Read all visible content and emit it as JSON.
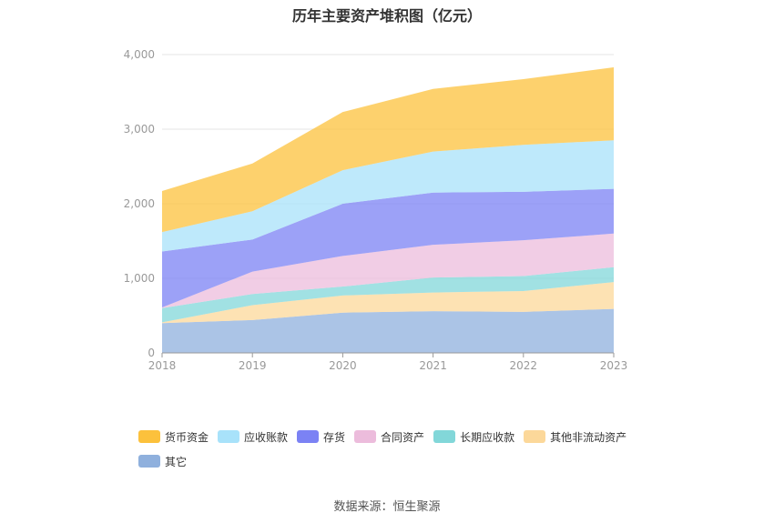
{
  "chart_data": {
    "type": "area",
    "stacked": true,
    "title": "历年主要资产堆积图（亿元）",
    "x": [
      "2018",
      "2019",
      "2020",
      "2021",
      "2022",
      "2023"
    ],
    "ylim": [
      0,
      4000
    ],
    "yticks": [
      0,
      1000,
      2000,
      3000,
      4000
    ],
    "ytick_labels": [
      "0",
      "1,000",
      "2,000",
      "3,000",
      "4,000"
    ],
    "grid": true,
    "legend_position": "bottom",
    "series": [
      {
        "name": "其它",
        "color": "#8fb0dd",
        "values": [
          400,
          440,
          540,
          560,
          550,
          590
        ]
      },
      {
        "name": "其他非流动资产",
        "color": "#fcd89a",
        "values": [
          10,
          200,
          230,
          250,
          280,
          360
        ]
      },
      {
        "name": "长期应收款",
        "color": "#82d7d9",
        "values": [
          190,
          150,
          120,
          200,
          200,
          200
        ]
      },
      {
        "name": "合同资产",
        "color": "#ecbcdc",
        "values": [
          10,
          300,
          410,
          440,
          480,
          450
        ]
      },
      {
        "name": "存货",
        "color": "#7b82f4",
        "values": [
          750,
          430,
          700,
          700,
          650,
          600
        ]
      },
      {
        "name": "应收账款",
        "color": "#a8e2fa",
        "values": [
          260,
          380,
          450,
          550,
          630,
          650
        ]
      },
      {
        "name": "货币资金",
        "color": "#fcc13c",
        "values": [
          550,
          640,
          780,
          840,
          880,
          980
        ]
      }
    ],
    "legend_order": [
      "货币资金",
      "应收账款",
      "存货",
      "合同资产",
      "长期应收款",
      "其他非流动资产",
      "其它"
    ]
  },
  "source": "数据来源：恒生聚源"
}
